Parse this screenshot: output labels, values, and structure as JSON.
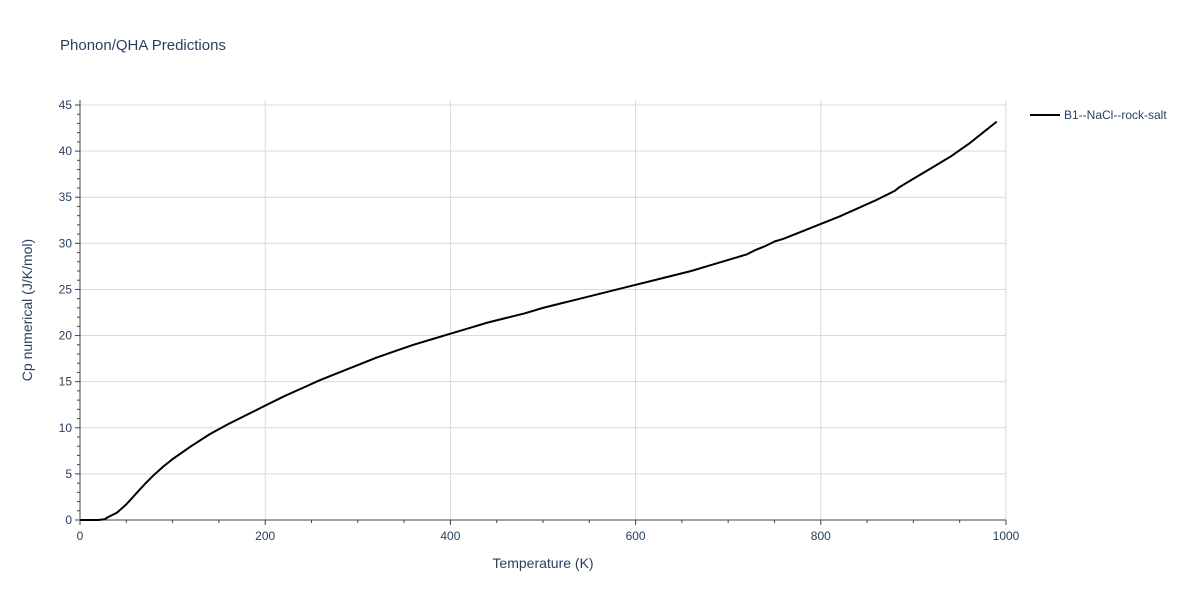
{
  "chart_data": {
    "type": "line",
    "title": "Phonon/QHA Predictions",
    "xlabel": "Temperature (K)",
    "ylabel": "Cp numerical (J/K/mol)",
    "xlim": [
      0,
      1000
    ],
    "ylim": [
      0,
      45
    ],
    "xticks": [
      0,
      200,
      400,
      600,
      800,
      1000
    ],
    "yticks": [
      0,
      5,
      10,
      15,
      20,
      25,
      30,
      35,
      40,
      45
    ],
    "grid": true,
    "legend_position": "top-right",
    "series": [
      {
        "name": "B1--NaCl--rock-salt",
        "color": "#000000",
        "x": [
          0,
          10,
          20,
          27,
          30,
          40,
          50,
          60,
          70,
          80,
          90,
          100,
          120,
          140,
          160,
          180,
          200,
          220,
          240,
          260,
          280,
          300,
          320,
          340,
          360,
          380,
          400,
          420,
          440,
          460,
          480,
          500,
          520,
          540,
          560,
          580,
          600,
          620,
          640,
          660,
          680,
          700,
          720,
          730,
          740,
          750,
          760,
          780,
          800,
          820,
          840,
          860,
          870,
          880,
          885,
          890,
          900,
          920,
          940,
          960,
          975,
          990
        ],
        "y": [
          0,
          0,
          0,
          0.1,
          0.3,
          0.8,
          1.7,
          2.8,
          3.9,
          4.9,
          5.8,
          6.6,
          8.0,
          9.3,
          10.4,
          11.4,
          12.4,
          13.4,
          14.3,
          15.2,
          16.0,
          16.8,
          17.6,
          18.3,
          19.0,
          19.6,
          20.2,
          20.8,
          21.4,
          21.9,
          22.4,
          23.0,
          23.5,
          24.0,
          24.5,
          25.0,
          25.5,
          26.0,
          26.5,
          27.0,
          27.6,
          28.2,
          28.8,
          29.3,
          29.7,
          30.2,
          30.5,
          31.3,
          32.1,
          32.9,
          33.8,
          34.7,
          35.2,
          35.7,
          36.1,
          36.4,
          37.0,
          38.2,
          39.4,
          40.8,
          42.0,
          43.2
        ]
      }
    ]
  }
}
